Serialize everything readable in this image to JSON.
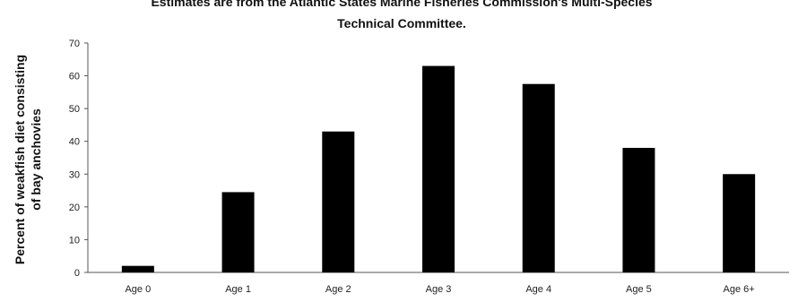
{
  "chart_data": {
    "type": "bar",
    "title_lines": [
      "Estimates are from the Atlantic States Marine Fisheries Commission's Multi-Species",
      "Technical Committee."
    ],
    "ylabel_lines": [
      "Percent of weakfish diet consisting",
      "of bay anchovies"
    ],
    "xlabel": "",
    "categories": [
      "Age 0",
      "Age 1",
      "Age 2",
      "Age 3",
      "Age 4",
      "Age 5",
      "Age 6+"
    ],
    "values": [
      2,
      24.5,
      43,
      63,
      57.5,
      38,
      30
    ],
    "ylim": [
      0,
      70
    ],
    "yticks": [
      0,
      10,
      20,
      30,
      40,
      50,
      60,
      70
    ],
    "grid": false,
    "legend": "none",
    "bar_color": "#000000"
  }
}
